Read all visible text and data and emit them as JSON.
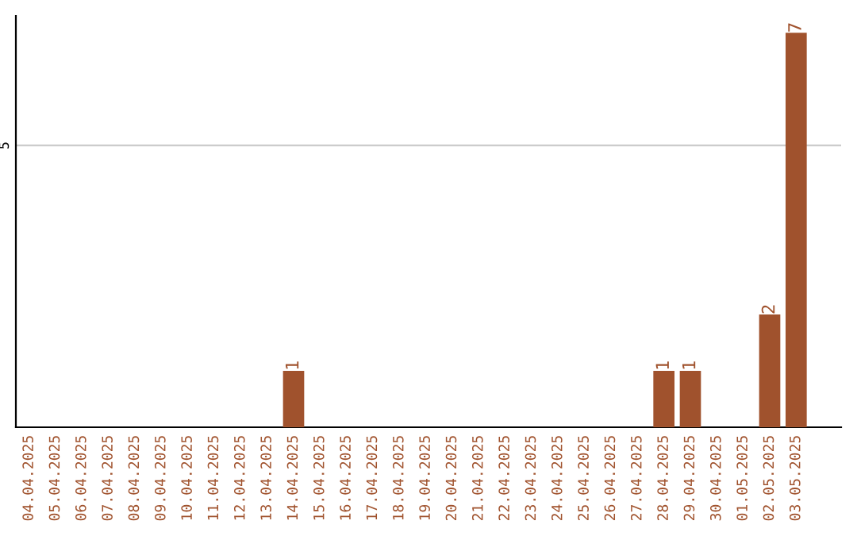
{
  "chart_data": {
    "type": "bar",
    "categories": [
      "04.04.2025",
      "05.04.2025",
      "06.04.2025",
      "07.04.2025",
      "08.04.2025",
      "09.04.2025",
      "10.04.2025",
      "11.04.2025",
      "12.04.2025",
      "13.04.2025",
      "14.04.2025",
      "15.04.2025",
      "16.04.2025",
      "17.04.2025",
      "18.04.2025",
      "19.04.2025",
      "20.04.2025",
      "21.04.2025",
      "22.04.2025",
      "23.04.2025",
      "24.04.2025",
      "25.04.2025",
      "26.04.2025",
      "27.04.2025",
      "28.04.2025",
      "29.04.2025",
      "30.04.2025",
      "01.05.2025",
      "02.05.2025",
      "03.05.2025"
    ],
    "values": [
      0,
      0,
      0,
      0,
      0,
      0,
      0,
      0,
      0,
      0,
      1,
      0,
      0,
      0,
      0,
      0,
      0,
      0,
      0,
      0,
      0,
      0,
      0,
      0,
      1,
      1,
      0,
      0,
      2,
      7
    ],
    "value_labels": [
      null,
      null,
      null,
      null,
      null,
      null,
      null,
      null,
      null,
      null,
      "1",
      null,
      null,
      null,
      null,
      null,
      null,
      null,
      null,
      null,
      null,
      null,
      null,
      null,
      "1",
      "1",
      null,
      null,
      "2",
      "7"
    ],
    "color": "#a0522d",
    "ylim": [
      0,
      7.3
    ],
    "yticks": [
      5
    ],
    "grid": "y"
  }
}
